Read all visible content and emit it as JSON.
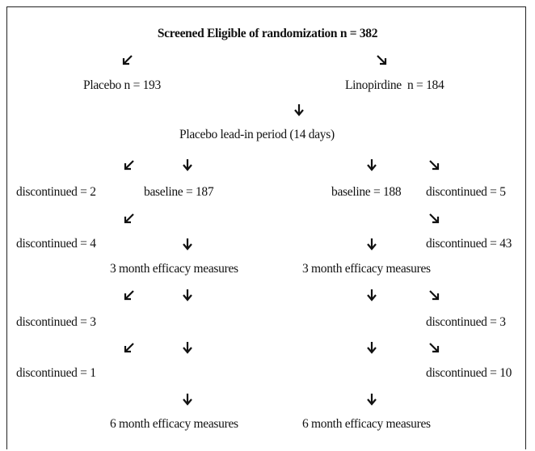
{
  "title": "Screened Eligible of randomization n = 382",
  "nodes": [
    {
      "label": "Placebo n = 193"
    },
    {
      "label": "Linopirdine  n = 184"
    },
    {
      "label": "Placebo lead-in period (14 days)"
    },
    {
      "label": "discontinued = 2"
    },
    {
      "label": "baseline = 187"
    },
    {
      "label": "baseline = 188"
    },
    {
      "label": "discontinued = 5"
    },
    {
      "label": "discontinued = 4"
    },
    {
      "label": "discontinued = 43"
    },
    {
      "label": "3 month efficacy measures"
    },
    {
      "label": "3 month efficacy measures"
    },
    {
      "label": "discontinued = 3"
    },
    {
      "label": "discontinued = 3"
    },
    {
      "label": "discontinued = 1"
    },
    {
      "label": "discontinued = 10"
    },
    {
      "label": "6 month efficacy measures"
    },
    {
      "label": "6 month efficacy measures"
    }
  ]
}
